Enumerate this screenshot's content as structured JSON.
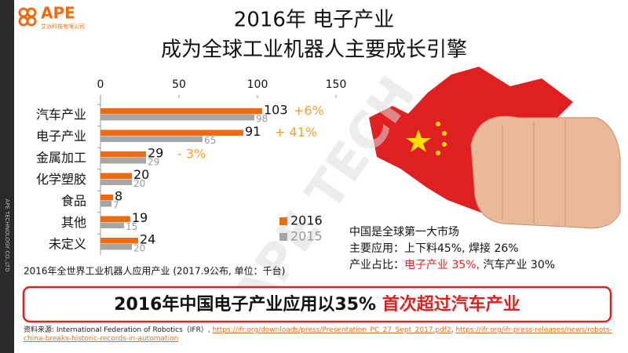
{
  "header": {
    "logo": "APE",
    "logo_sub": "艾派科技有限公司",
    "title_lines": [
      "2016年 电子产业",
      "成为全球工业机器人主要成长引擎"
    ]
  },
  "chart_data": {
    "type": "bar",
    "orientation": "horizontal",
    "categories": [
      "汽车产业",
      "电子产业",
      "金属加工",
      "化学塑胶",
      "食品",
      "其他",
      "未定义"
    ],
    "series": [
      {
        "name": "2016",
        "color": "#f26a10",
        "values": [
          103,
          91,
          29,
          20,
          8,
          19,
          24
        ]
      },
      {
        "name": "2015",
        "color": "#a6a6a6",
        "values": [
          98,
          65,
          29,
          20,
          7,
          15,
          20
        ]
      }
    ],
    "growth_labels": [
      "+6%",
      "+ 41%",
      "- 3%",
      null,
      null,
      null,
      null
    ],
    "growth_color": "#f0a030",
    "xlim": [
      0,
      150
    ],
    "xticks": [
      0,
      50,
      100,
      150
    ],
    "legend": "lower-right",
    "caption": "2016年全世界工业机器人应用产业 (2017.9公布, 单位：千台)"
  },
  "market_note": {
    "line1": "中国是全球第一大市场",
    "line2": "主要应用：上下料45%, 焊接 26%",
    "line3_a": "产业占比：",
    "line3_b": "电子产业 35%,",
    "line3_c": " 汽车产业 30%"
  },
  "banner": {
    "part1": "2016年中国电子产业应用以35% ",
    "part2": "首次超过汽车产业"
  },
  "source": {
    "label": "资料来源: International Federation of Robotics（IFR）, ",
    "link1": "https://ifr.org/downloads/press/Presentation_PC_27_Sept_2017.pdf2",
    "sep": ", ",
    "link2": "https://ifr.org/ifr-press-releases/news/robots-china-breaks-historic-records-in-automation"
  },
  "watermark": "APE TECH",
  "side_text": "APE TECHNOLOGY CO.,LTD"
}
